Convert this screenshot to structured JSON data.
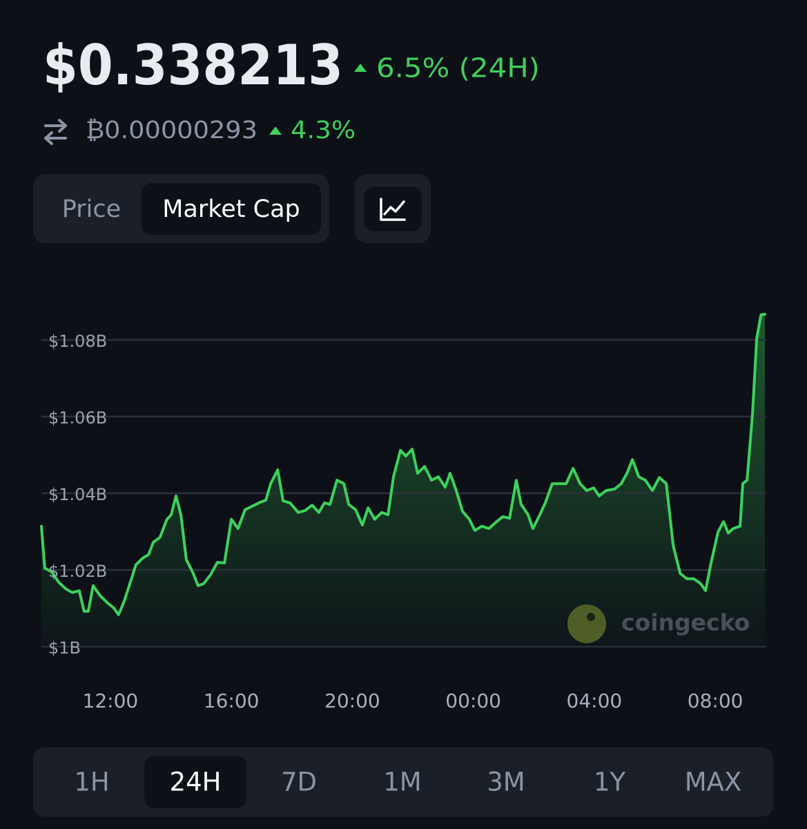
{
  "header": {
    "price": "$0.338213",
    "change_24h": "6.5% (24H)",
    "btc_price": "₿0.00000293",
    "btc_change": "4.3%"
  },
  "tabs": [
    "Price",
    "Market Cap"
  ],
  "active_tab": 1,
  "ranges": [
    "1H",
    "24H",
    "7D",
    "1M",
    "3M",
    "1Y",
    "MAX"
  ],
  "active_range": 1,
  "chart_data": {
    "type": "line",
    "watermark": "coingecko",
    "color": "#3dd15c",
    "grid": true,
    "x": [
      -2.28,
      -2.17,
      -1.94,
      -1.71,
      -1.48,
      -1.26,
      -1.03,
      -0.87,
      -0.73,
      -0.57,
      -0.34,
      -0.11,
      0.11,
      0.27,
      0.46,
      0.68,
      0.84,
      1.07,
      1.26,
      1.42,
      1.64,
      1.87,
      2.01,
      2.17,
      2.33,
      2.51,
      2.74,
      2.9,
      3.08,
      3.31,
      3.54,
      3.77,
      4.0,
      4.22,
      4.45,
      4.68,
      4.91,
      5.14,
      5.3,
      5.53,
      5.71,
      5.94,
      6.21,
      6.44,
      6.67,
      6.89,
      7.08,
      7.26,
      7.49,
      7.72,
      7.88,
      8.11,
      8.33,
      8.52,
      8.74,
      8.97,
      9.18,
      9.36,
      9.59,
      9.77,
      9.98,
      10.16,
      10.39,
      10.62,
      10.84,
      11.07,
      11.23,
      11.42,
      11.64,
      11.87,
      12.05,
      12.28,
      12.51,
      12.74,
      12.97,
      13.2,
      13.42,
      13.58,
      13.81,
      13.97,
      14.2,
      14.38,
      14.61,
      14.84,
      15.07,
      15.3,
      15.53,
      15.75,
      15.98,
      16.16,
      16.39,
      16.67,
      16.89,
      17.08,
      17.26,
      17.47,
      17.69,
      17.92,
      18.15,
      18.38,
      18.61,
      18.84,
      19.06,
      19.29,
      19.52,
      19.68,
      19.86,
      20.09,
      20.27,
      20.43,
      20.59,
      20.82,
      20.91,
      21.05,
      21.23,
      21.37,
      21.51,
      21.64
    ],
    "values": [
      1.0314,
      1.0205,
      1.0195,
      1.0168,
      1.0151,
      1.0141,
      1.0146,
      1.0092,
      1.0092,
      1.0159,
      1.0133,
      1.0115,
      1.0101,
      1.0083,
      1.0119,
      1.0173,
      1.0213,
      1.0231,
      1.024,
      1.0272,
      1.0285,
      1.0332,
      1.0344,
      1.0393,
      1.0344,
      1.0227,
      1.0191,
      1.0159,
      1.0164,
      1.0187,
      1.022,
      1.0218,
      1.0332,
      1.0308,
      1.0357,
      1.0366,
      1.0375,
      1.0382,
      1.0425,
      1.0461,
      1.038,
      1.0375,
      1.035,
      1.0355,
      1.0369,
      1.035,
      1.0375,
      1.0371,
      1.0434,
      1.0425,
      1.0371,
      1.0357,
      1.0317,
      1.0362,
      1.0332,
      1.035,
      1.0344,
      1.0443,
      1.0512,
      1.0497,
      1.0515,
      1.0452,
      1.047,
      1.0434,
      1.0443,
      1.0416,
      1.0452,
      1.0411,
      1.0353,
      1.0332,
      1.0303,
      1.0314,
      1.0308,
      1.0324,
      1.0339,
      1.0335,
      1.0434,
      1.0371,
      1.0344,
      1.0308,
      1.0344,
      1.0375,
      1.0425,
      1.0425,
      1.0425,
      1.0465,
      1.0425,
      1.0407,
      1.0414,
      1.0393,
      1.0407,
      1.0411,
      1.0425,
      1.0452,
      1.0488,
      1.0443,
      1.0434,
      1.0407,
      1.0441,
      1.0425,
      1.0263,
      1.0191,
      1.0177,
      1.0177,
      1.0164,
      1.0146,
      1.0218,
      1.0299,
      1.0326,
      1.0296,
      1.0308,
      1.0314,
      1.0425,
      1.0434,
      1.0605,
      1.0804,
      1.0865,
      1.0867
    ],
    "xlim": [
      -2.28,
      21.64
    ],
    "xticks": [
      {
        "value": 0,
        "label": "12:00"
      },
      {
        "value": 4,
        "label": "16:00"
      },
      {
        "value": 8,
        "label": "20:00"
      },
      {
        "value": 12,
        "label": "00:00"
      },
      {
        "value": 16,
        "label": "04:00"
      },
      {
        "value": 20,
        "label": "08:00"
      }
    ],
    "ylim": [
      1,
      1.09
    ],
    "yticks": [
      {
        "value": 1,
        "label": "$1B"
      },
      {
        "value": 1.02,
        "label": "$1.02B"
      },
      {
        "value": 1.04,
        "label": "$1.04B"
      },
      {
        "value": 1.06,
        "label": "$1.06B"
      },
      {
        "value": 1.08,
        "label": "$1.08B"
      }
    ]
  }
}
